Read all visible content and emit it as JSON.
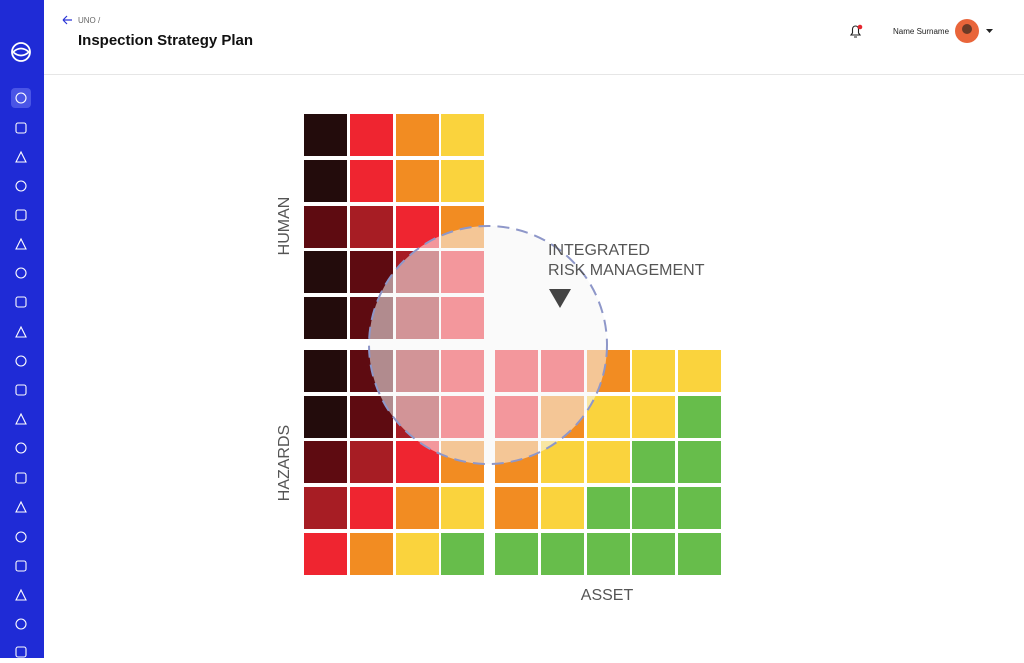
{
  "header": {
    "breadcrumb": "UNO /",
    "title": "Inspection Strategy Plan",
    "user": "Name Surname"
  },
  "diagram": {
    "human_label": "HUMAN",
    "hazards_label": "HAZARDS",
    "asset_label": "ASSET",
    "overlap_label": [
      "INTEGRATED",
      "RISK MANAGEMENT"
    ]
  }
}
